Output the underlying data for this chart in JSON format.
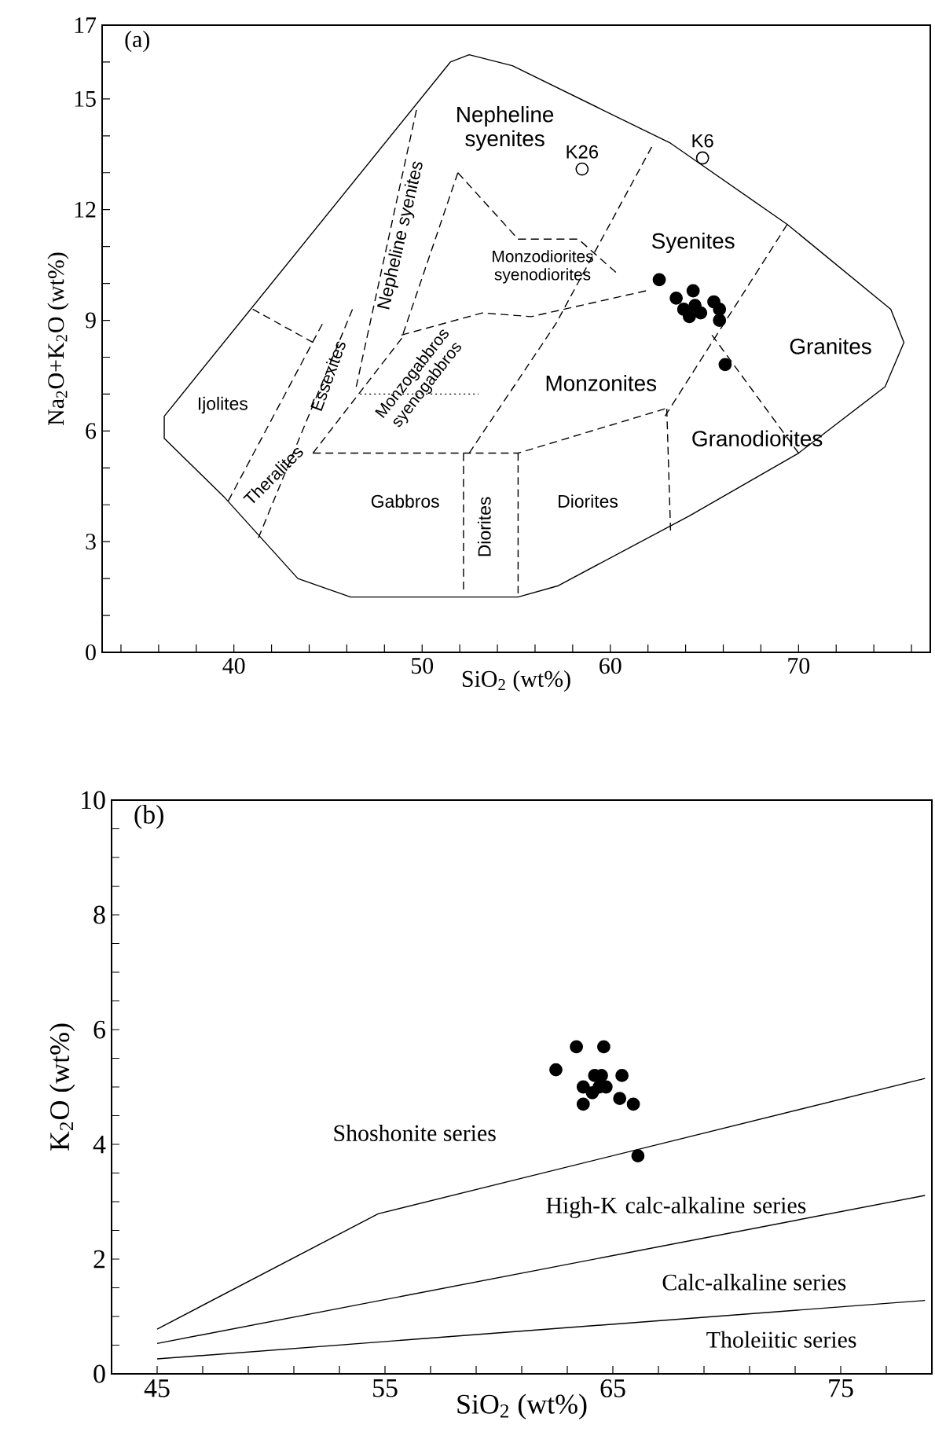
{
  "chart_data": [
    {
      "type": "scatter",
      "title": "(a)",
      "xlabel": "SiO$_{2}$ (wt%)",
      "ylabel": "Na$_{2}$O+K$_{2}$O (wt%)",
      "xlim": [
        33,
        77
      ],
      "ylim": [
        0,
        17
      ],
      "xticks": [
        {
          "value": 34,
          "label": null
        },
        {
          "value": 36,
          "label": null
        },
        {
          "value": 38,
          "label": null
        },
        40,
        {
          "value": 42,
          "label": null
        },
        {
          "value": 44,
          "label": null
        },
        {
          "value": 46,
          "label": null
        },
        {
          "value": 48,
          "label": null
        },
        50,
        {
          "value": 52,
          "label": null
        },
        {
          "value": 54,
          "label": null
        },
        {
          "value": 56,
          "label": null
        },
        {
          "value": 58,
          "label": null
        },
        60,
        {
          "value": 62,
          "label": null
        },
        {
          "value": 64,
          "label": null
        },
        {
          "value": 66,
          "label": null
        },
        {
          "value": 68,
          "label": null
        },
        70,
        {
          "value": 72,
          "label": null
        },
        {
          "value": 74,
          "label": null
        },
        {
          "value": 76,
          "label": null
        }
      ],
      "yticks": [
        0,
        {
          "value": 1,
          "label": null
        },
        {
          "value": 2,
          "label": null
        },
        3,
        {
          "value": 4,
          "label": null
        },
        {
          "value": 5,
          "label": null
        },
        6,
        {
          "value": 7,
          "label": null
        },
        {
          "value": 8,
          "label": null
        },
        9,
        {
          "value": 10,
          "label": null
        },
        {
          "value": 11,
          "label": null
        },
        12,
        {
          "value": 13,
          "label": null
        },
        {
          "value": 14,
          "label": null
        },
        15,
        {
          "value": 16,
          "label": null
        },
        17
      ],
      "series": [
        {
          "type": "line",
          "color": "#000000",
          "line_style": "solid",
          "x": [
            36.3,
            36.3,
            39.5,
            43.4,
            46.2,
            55.1,
            57.2,
            64.2,
            70.0,
            74.6,
            75.6,
            74.9,
            69.4,
            63.2,
            54.8,
            52.5,
            51.5
          ],
          "values": [
            6.4,
            5.8,
            4.2,
            2.0,
            1.5,
            1.5,
            1.8,
            3.7,
            5.4,
            7.2,
            8.4,
            9.3,
            11.6,
            13.8,
            15.9,
            16.2,
            16.0
          ]
        },
        {
          "type": "line",
          "color": "#000000",
          "line_style": "solid",
          "x": [
            51.5,
            36.3
          ],
          "values": [
            16.0,
            6.4
          ]
        },
        {
          "type": "line",
          "color": "#000000",
          "line_style": "dashed",
          "x": [
            41.0,
            44.2
          ],
          "values": [
            9.3,
            8.4
          ]
        },
        {
          "type": "line",
          "color": "#000000",
          "line_style": "dashed",
          "x": [
            44.7,
            39.7
          ],
          "values": [
            8.9,
            4.1
          ]
        },
        {
          "type": "line",
          "color": "#000000",
          "line_style": "dashed",
          "x": [
            46.3,
            41.3
          ],
          "values": [
            9.3,
            3.1
          ]
        },
        {
          "type": "line",
          "color": "#000000",
          "line_style": "dashed",
          "x": [
            49.7,
            46.5
          ],
          "values": [
            14.7,
            7.2
          ]
        },
        {
          "type": "line",
          "color": "#000000",
          "line_style": "dashed",
          "x": [
            51.9,
            48.9,
            44.2
          ],
          "values": [
            13.0,
            8.5,
            5.4
          ]
        },
        {
          "type": "line",
          "color": "#000000",
          "line_style": "dashed",
          "x": [
            51.9,
            55.1,
            58.3,
            60.3
          ],
          "values": [
            13.0,
            11.2,
            11.2,
            10.3
          ]
        },
        {
          "type": "line",
          "color": "#000000",
          "line_style": "dashed",
          "x": [
            48.9,
            53.2,
            55.8,
            61.9
          ],
          "values": [
            8.6,
            9.2,
            9.1,
            9.8
          ]
        },
        {
          "type": "line",
          "color": "#000000",
          "line_style": "dashed",
          "x": [
            62.2,
            57.1,
            52.5
          ],
          "values": [
            13.7,
            8.9,
            5.4
          ]
        },
        {
          "type": "line",
          "color": "#000000",
          "line_style": "dashed",
          "x": [
            44.2,
            55.1,
            62.9
          ],
          "values": [
            5.4,
            5.4,
            6.6
          ]
        },
        {
          "type": "line",
          "color": "#000000",
          "line_style": "dashed",
          "x": [
            63.0,
            63.2
          ],
          "values": [
            6.6,
            3.3
          ]
        },
        {
          "type": "line",
          "color": "#000000",
          "line_style": "dashed",
          "x": [
            52.2,
            52.2
          ],
          "values": [
            5.4,
            1.7
          ]
        },
        {
          "type": "line",
          "color": "#000000",
          "line_style": "dashed",
          "x": [
            55.1,
            55.1
          ],
          "values": [
            5.4,
            1.6
          ]
        },
        {
          "type": "line",
          "color": "#000000",
          "line_style": "dashed",
          "x": [
            69.4,
            62.9
          ],
          "values": [
            11.6,
            6.4
          ]
        },
        {
          "type": "line",
          "color": "#000000",
          "line_style": "dashed",
          "x": [
            65.4,
            70.0
          ],
          "values": [
            8.6,
            5.4
          ]
        },
        {
          "type": "line",
          "color": "#000000",
          "line_style": "dotted",
          "x": [
            46.7,
            53.0
          ],
          "values": [
            7.0,
            7.0
          ]
        },
        {
          "color": "#000000",
          "marker": "circle",
          "x": [
            62.6,
            63.5,
            64.4,
            63.9,
            64.8,
            65.5,
            65.8,
            65.8,
            64.5,
            64.2,
            66.1
          ],
          "values": [
            10.1,
            9.6,
            9.8,
            9.3,
            9.2,
            9.5,
            9.3,
            9.0,
            9.4,
            9.1,
            7.8
          ]
        },
        {
          "color": "#000000",
          "marker": "circle",
          "x": [
            58.5,
            64.9
          ],
          "values": [
            13.1,
            13.4
          ],
          "value_labels": [
            "K26",
            "K6"
          ]
        }
      ],
      "annotations": [
        "Nepheline syenites",
        "Syenites",
        "Granites",
        "Monzonites",
        "Granodiorites",
        "Gabbros",
        "Diorites",
        "Diorites",
        "Ijolites",
        "Theralites",
        "Essexites",
        "Nepheline syenites",
        "Monzogabbros syenogabbros",
        "Monzodiorites syenodiorites"
      ]
    },
    {
      "type": "scatter",
      "title": "(b)",
      "xlabel": "SiO$_{2}$ (wt%)",
      "ylabel": "K$_{2}$O (wt%)",
      "xlim": [
        43,
        79
      ],
      "ylim": [
        0,
        10
      ],
      "xticks": [
        45,
        {
          "value": 47,
          "label": null
        },
        {
          "value": 49,
          "label": null
        },
        {
          "value": 51,
          "label": null
        },
        {
          "value": 53,
          "label": null
        },
        55,
        {
          "value": 57,
          "label": null
        },
        {
          "value": 59,
          "label": null
        },
        {
          "value": 61,
          "label": null
        },
        {
          "value": 63,
          "label": null
        },
        65,
        {
          "value": 67,
          "label": null
        },
        {
          "value": 69,
          "label": null
        },
        {
          "value": 71,
          "label": null
        },
        {
          "value": 73,
          "label": null
        },
        75,
        {
          "value": 77,
          "label": null
        }
      ],
      "yticks": [
        0,
        {
          "value": 0.5,
          "label": null
        },
        {
          "value": 1,
          "label": null
        },
        {
          "value": 1.5,
          "label": null
        },
        2,
        {
          "value": 2.5,
          "label": null
        },
        {
          "value": 3,
          "label": null
        },
        {
          "value": 3.5,
          "label": null
        },
        4,
        {
          "value": 4.5,
          "label": null
        },
        {
          "value": 5,
          "label": null
        },
        {
          "value": 5.5,
          "label": null
        },
        6,
        {
          "value": 6.5,
          "label": null
        },
        {
          "value": 7,
          "label": null
        },
        {
          "value": 7.5,
          "label": null
        },
        8,
        {
          "value": 8.5,
          "label": null
        },
        {
          "value": 9,
          "label": null
        },
        {
          "value": 9.5,
          "label": null
        },
        10
      ],
      "series": [
        {
          "type": "line",
          "color": "#000000",
          "line_style": "solid",
          "x": [
            45,
            54.7,
            78.7
          ],
          "values": [
            0.78,
            2.79,
            5.15
          ]
        },
        {
          "type": "line",
          "color": "#000000",
          "line_style": "solid",
          "x": [
            45,
            78.7
          ],
          "values": [
            0.53,
            3.11
          ]
        },
        {
          "type": "line",
          "color": "#000000",
          "line_style": "solid",
          "x": [
            45,
            78.7
          ],
          "values": [
            0.26,
            1.28
          ]
        },
        {
          "color": "#000000",
          "marker": "circle",
          "x": [
            62.5,
            63.4,
            64.6,
            65.4,
            63.7,
            64.2,
            64.5,
            64.7,
            64.1,
            63.7,
            65.3,
            65.9,
            66.1,
            64.4
          ],
          "values": [
            5.3,
            5.7,
            5.7,
            5.2,
            5.0,
            5.2,
            5.2,
            5.0,
            4.9,
            4.7,
            4.8,
            4.7,
            3.8,
            5.0
          ]
        }
      ],
      "annotations": [
        "Shoshonite series",
        "High-K calc-alkaline series",
        "Calc-alkaline series",
        "Tholeiitic series"
      ]
    }
  ]
}
